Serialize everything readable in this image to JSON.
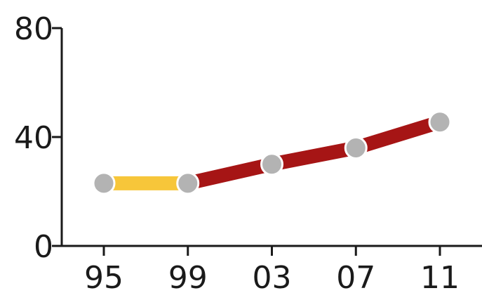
{
  "chart_data": {
    "type": "line",
    "x": [
      "95",
      "99",
      "03",
      "07",
      "11"
    ],
    "values": [
      23,
      23,
      30,
      36,
      45.5
    ],
    "ylim": [
      0,
      80
    ],
    "yticks": [
      "0",
      "40",
      "80"
    ],
    "grid": false,
    "legend": "none",
    "segment_colors": [
      "#f7c63a",
      "#a61515",
      "#a61515",
      "#a61515"
    ],
    "marker_color": "#b3b3b3",
    "marker_edge_color": "#ffffff",
    "axis_color": "#1a1a1a"
  }
}
